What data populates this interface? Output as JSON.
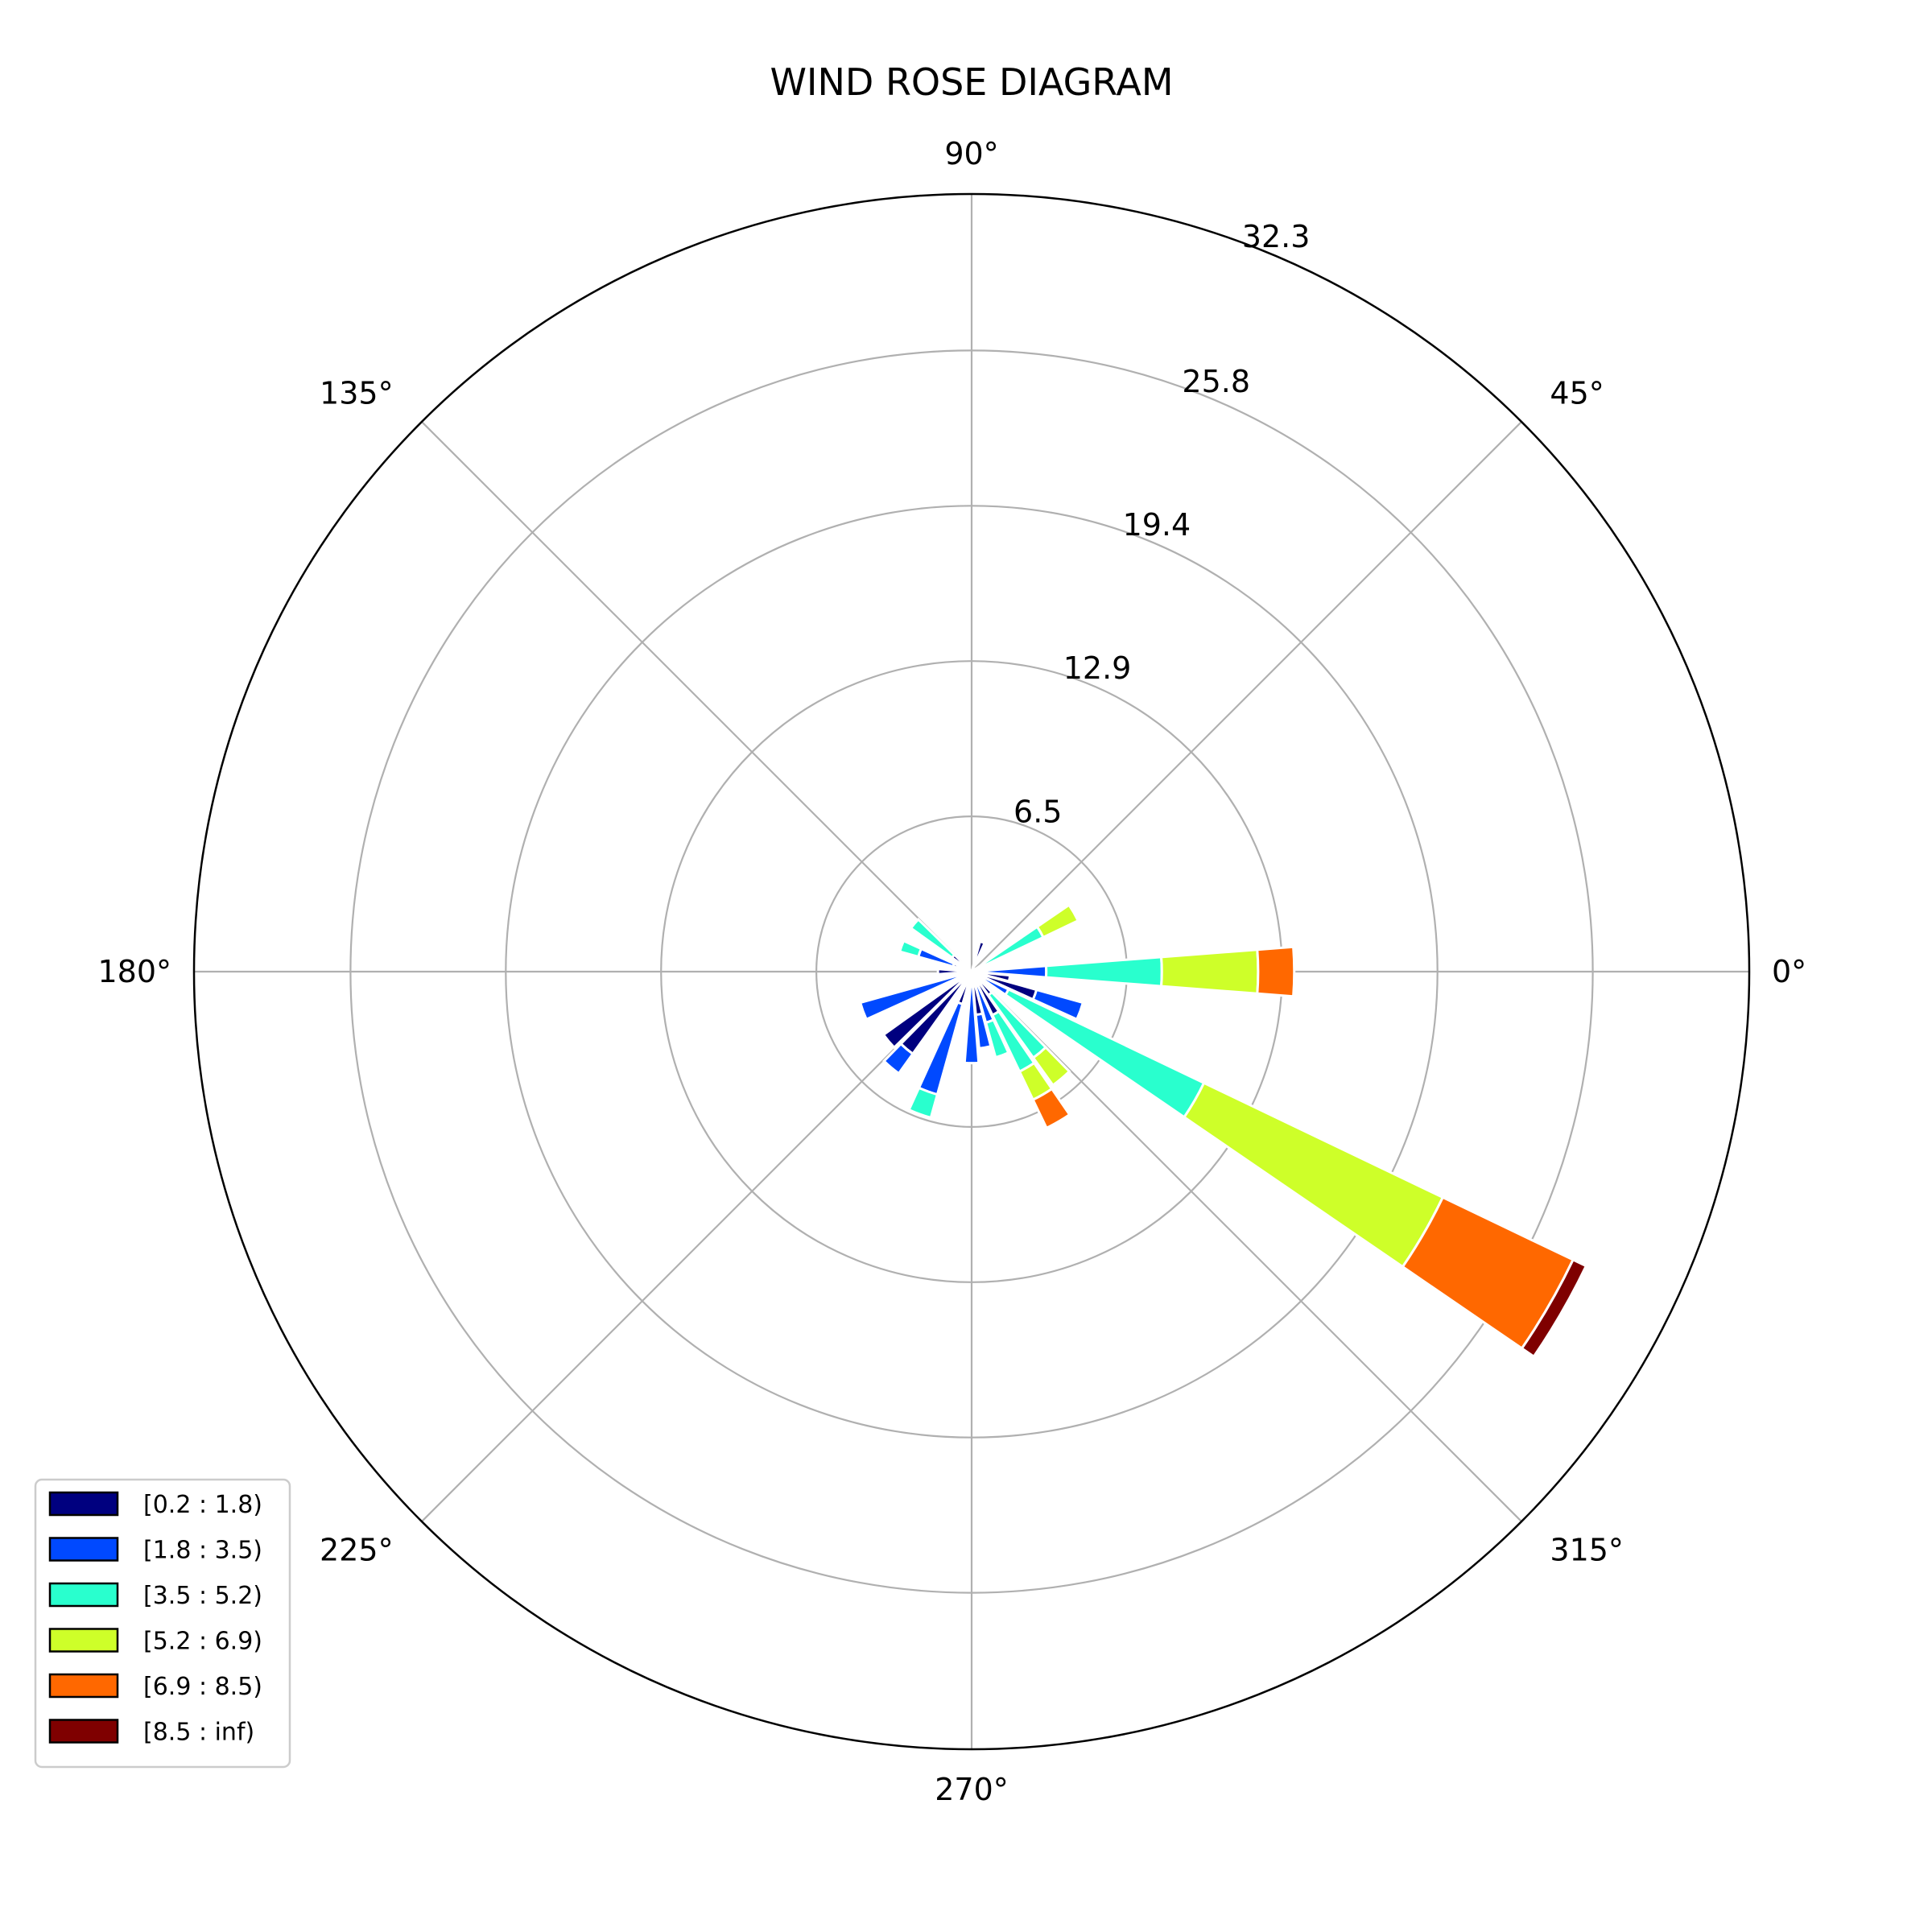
{
  "chart_data": {
    "type": "bar",
    "subtype": "polar-stacked-bar",
    "title": "WIND ROSE DIAGRAM",
    "angle_tick_labels": [
      "0°",
      "45°",
      "90°",
      "135°",
      "180°",
      "225°",
      "270°",
      "315°"
    ],
    "angle_ticks_deg": [
      0,
      45,
      90,
      135,
      180,
      225,
      270,
      315
    ],
    "radial_tick_labels": [
      "6.5",
      "12.9",
      "19.4",
      "25.8",
      "32.3"
    ],
    "radial_ticks": [
      6.45,
      12.9,
      19.35,
      25.8,
      32.3
    ],
    "rlim": [
      0,
      32.3
    ],
    "grid": true,
    "legend_position": "bottom-left",
    "bin_width_deg": 10,
    "colors": [
      "#00007f",
      "#0049ff",
      "#29ffce",
      "#ceff29",
      "#ff6800",
      "#7f0000"
    ],
    "series": [
      {
        "name": "[0.2 : 1.8)",
        "color": "#00007f"
      },
      {
        "name": "[1.8 : 3.5)",
        "color": "#0049ff"
      },
      {
        "name": "[3.5 : 5.2)",
        "color": "#29ffce"
      },
      {
        "name": "[5.2 : 6.9)",
        "color": "#ceff29"
      },
      {
        "name": "[6.9 : 8.5)",
        "color": "#ff6800"
      },
      {
        "name": "[8.5 : inf)",
        "color": "#7f0000"
      }
    ],
    "directions_deg": [
      0,
      30,
      70,
      140,
      160,
      180,
      200,
      220,
      230,
      250,
      270,
      280,
      290,
      300,
      310,
      320,
      330,
      340,
      350
    ],
    "values": [
      [
        0.6,
        2.5,
        4.8,
        4.0,
        1.5,
        0.0
      ],
      [
        0.2,
        0.3,
        2.8,
        1.6,
        0.0,
        0.0
      ],
      [
        1.3,
        0.0,
        0.0,
        0.0,
        0.0,
        0.0
      ],
      [
        1.0,
        0.0,
        2.1,
        0.0,
        0.0,
        0.0
      ],
      [
        0.8,
        1.5,
        0.8,
        0.0,
        0.0,
        0.0
      ],
      [
        1.4,
        0.0,
        0.0,
        0.0,
        0.0,
        0.0
      ],
      [
        0.6,
        4.2,
        0.0,
        0.0,
        0.0,
        0.0
      ],
      [
        4.5,
        0.0,
        0.0,
        0.0,
        0.0,
        0.0
      ],
      [
        4.2,
        1.0,
        0.0,
        0.0,
        0.0,
        0.0
      ],
      [
        1.4,
        3.9,
        1.0,
        0.0,
        0.0,
        0.0
      ],
      [
        0.6,
        3.2,
        0.0,
        0.0,
        0.0,
        0.0
      ],
      [
        1.8,
        1.4,
        0.0,
        0.0,
        0.0,
        0.0
      ],
      [
        0.6,
        1.6,
        1.5,
        0.0,
        0.0,
        0.0
      ],
      [
        2.0,
        0.0,
        2.6,
        1.3,
        1.3,
        0.0
      ],
      [
        1.2,
        0.0,
        3.2,
        1.4,
        0.0,
        0.0
      ],
      [
        0.7,
        0.0,
        0.0,
        0.0,
        0.0,
        0.0
      ],
      [
        0.4,
        1.3,
        9.0,
        11.0,
        6.0,
        0.6
      ],
      [
        2.8,
        2.0,
        0.0,
        0.0,
        0.0,
        0.0
      ],
      [
        1.6,
        0.0,
        0.0,
        0.0,
        0.0,
        0.0
      ]
    ]
  }
}
